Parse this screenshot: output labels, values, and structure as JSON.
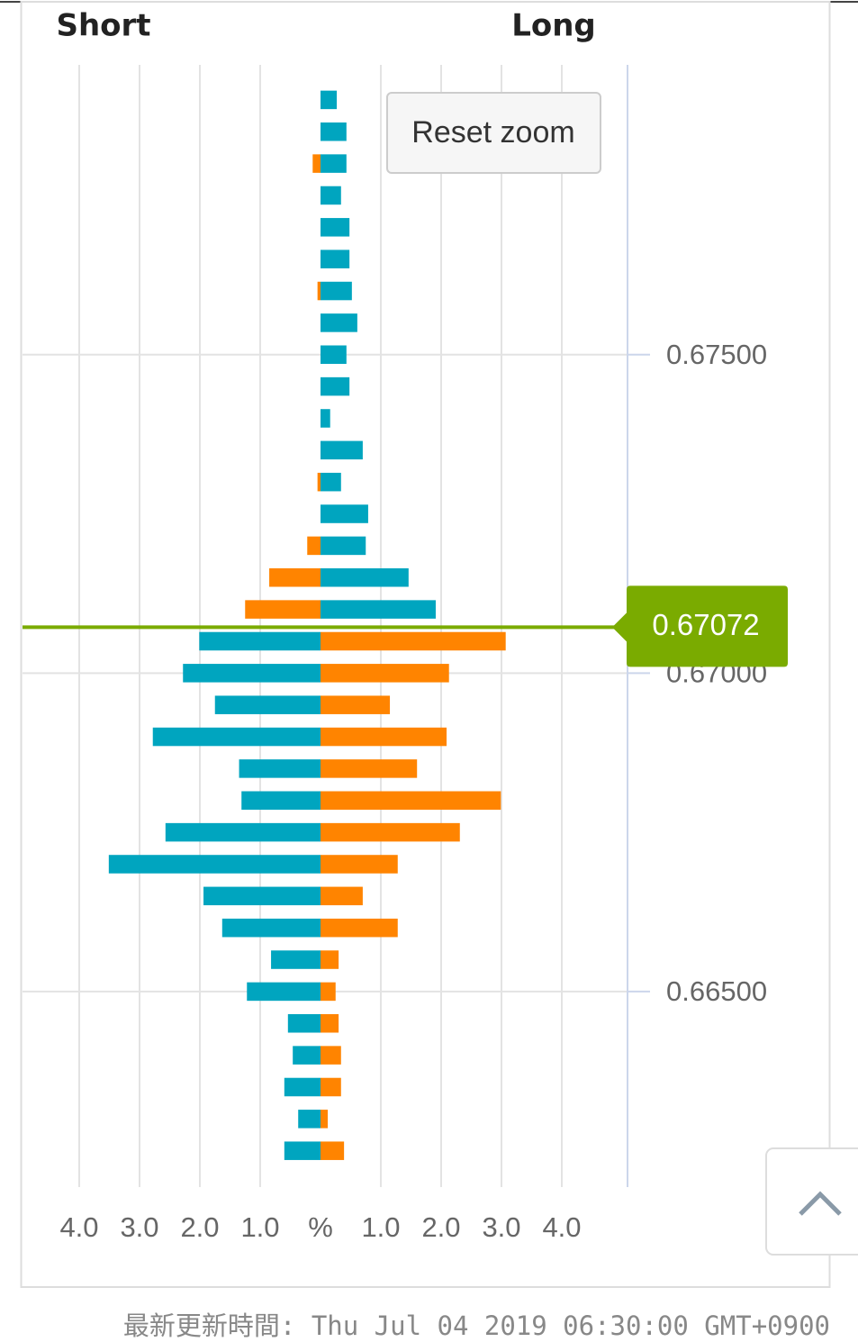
{
  "chart_data": {
    "type": "orderbook",
    "y": [
      0.679,
      0.6785,
      0.678,
      0.6775,
      0.677,
      0.6765,
      0.676,
      0.6755,
      0.675,
      0.6745,
      0.674,
      0.6735,
      0.673,
      0.6725,
      0.672,
      0.6715,
      0.671,
      0.6705,
      0.67,
      0.6695,
      0.669,
      0.6685,
      0.668,
      0.6675,
      0.667,
      0.6665,
      0.666,
      0.6655,
      0.665,
      0.6645,
      0.664,
      0.6635,
      0.663,
      0.6625
    ],
    "series": [
      {
        "name": "Short",
        "side": "left",
        "color_above": "#ff8400",
        "color_below": "#00a5bf",
        "values": [
          0,
          0,
          0.13,
          0,
          0,
          0,
          0.05,
          0,
          0,
          0,
          0,
          0,
          0.05,
          0,
          0.22,
          0.85,
          1.25,
          2.01,
          2.28,
          1.75,
          2.78,
          1.35,
          1.31,
          2.57,
          3.51,
          1.94,
          1.63,
          0.82,
          1.22,
          0.54,
          0.46,
          0.6,
          0.37,
          0.6
        ]
      },
      {
        "name": "Long",
        "side": "right",
        "color_above": "#00a5bf",
        "color_below": "#ff8400",
        "values": [
          0.27,
          0.43,
          0.43,
          0.34,
          0.48,
          0.48,
          0.52,
          0.61,
          0.43,
          0.48,
          0.16,
          0.7,
          0.34,
          0.79,
          0.75,
          1.46,
          1.91,
          3.07,
          2.13,
          1.15,
          2.09,
          1.6,
          2.99,
          2.31,
          1.28,
          0.7,
          1.28,
          0.3,
          0.25,
          0.3,
          0.34,
          0.34,
          0.12,
          0.39
        ]
      }
    ],
    "current_price": 0.67072,
    "current_price_color": "#7aab00",
    "xlim": [
      -5,
      5
    ],
    "xticks": [
      {
        "value": -4,
        "label": "4.0"
      },
      {
        "value": -3,
        "label": "3.0"
      },
      {
        "value": -2,
        "label": "2.0"
      },
      {
        "value": -1,
        "label": "1.0"
      },
      {
        "value": 0,
        "label": "%"
      },
      {
        "value": 1,
        "label": "1.0"
      },
      {
        "value": 2,
        "label": "2.0"
      },
      {
        "value": 3,
        "label": "3.0"
      },
      {
        "value": 4,
        "label": "4.0"
      }
    ],
    "ylim": [
      0.66193,
      0.67955
    ],
    "yticks": [
      {
        "value": 0.675,
        "label": "0.67500"
      },
      {
        "value": 0.67,
        "label": "0.67000"
      },
      {
        "value": 0.665,
        "label": "0.66500"
      }
    ],
    "grid": true
  },
  "ui": {
    "reset_zoom": "Reset zoom",
    "footer": "最新更新時間: Thu Jul 04 2019 06:30:00 GMT+0900"
  }
}
